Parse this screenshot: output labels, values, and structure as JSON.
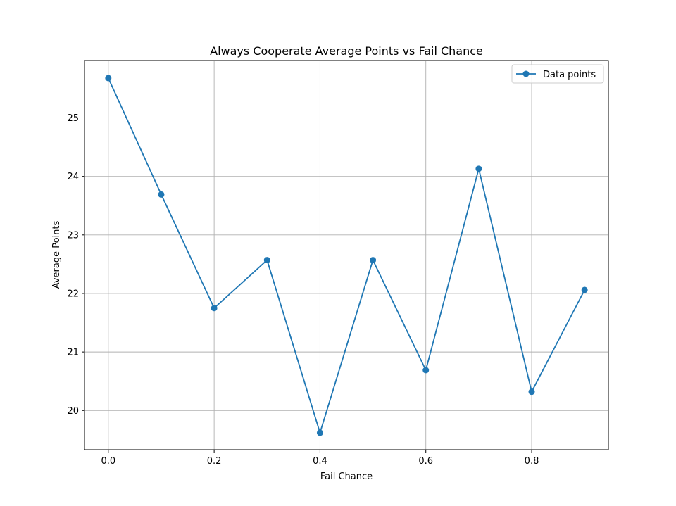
{
  "chart_data": {
    "type": "line",
    "title": "Always Cooperate Average Points vs Fail Chance",
    "xlabel": "Fail Chance",
    "ylabel": "Average Points",
    "xlim": [
      -0.045,
      0.945
    ],
    "ylim": [
      19.33,
      25.98
    ],
    "xticks": [
      0.0,
      0.2,
      0.4,
      0.6,
      0.8
    ],
    "xtick_labels": [
      "0.0",
      "0.2",
      "0.4",
      "0.6",
      "0.8"
    ],
    "yticks": [
      20,
      21,
      22,
      23,
      24,
      25
    ],
    "ytick_labels": [
      "20",
      "21",
      "22",
      "23",
      "24",
      "25"
    ],
    "grid": true,
    "legend_position": "top-right",
    "series": [
      {
        "name": "Data points",
        "color": "#1f77b4",
        "marker": "circle",
        "x": [
          0.0,
          0.1,
          0.2,
          0.3,
          0.4,
          0.5,
          0.6,
          0.7,
          0.8,
          0.9
        ],
        "y": [
          25.68,
          23.69,
          21.75,
          22.57,
          19.62,
          22.57,
          20.69,
          24.13,
          20.32,
          22.06
        ]
      }
    ]
  }
}
